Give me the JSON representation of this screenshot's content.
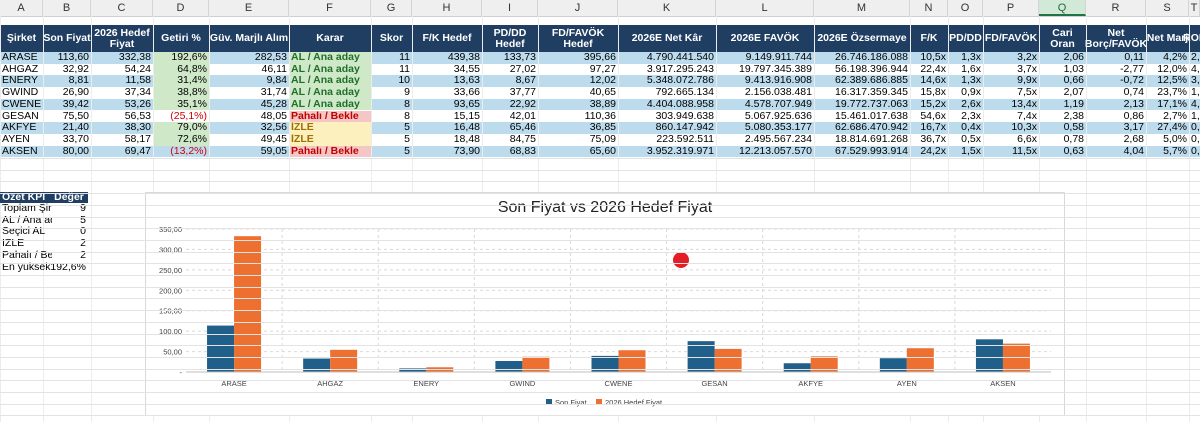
{
  "column_letters": [
    "A",
    "B",
    "C",
    "D",
    "E",
    "F",
    "G",
    "H",
    "I",
    "J",
    "K",
    "L",
    "M",
    "N",
    "O",
    "P",
    "Q",
    "R",
    "S",
    "T"
  ],
  "selected_column": "Q",
  "headers": [
    "Şirket",
    "Son Fiyat",
    "2026 Hedef Fiyat",
    "Getiri %",
    "Güv. Marjlı Alım",
    "Karar",
    "Skor",
    "F/K Hedef",
    "PD/DD Hedef",
    "FD/FAVÖK Hedef",
    "2026E Net Kâr",
    "2026E FAVÖK",
    "2026E Özsermaye",
    "F/K",
    "PD/DD",
    "FD/FAVÖK",
    "Cari Oran",
    "Net Borç/FAVÖK",
    "Net Marj",
    "ROE"
  ],
  "rows": [
    {
      "sirket": "ARASE",
      "son": "113,60",
      "hedef": "332,38",
      "getiri": "192,6%",
      "guv": "282,53",
      "karar": "AL / Ana aday",
      "karar_type": "al",
      "skor": "11",
      "fk_h": "439,38",
      "pddd_h": "133,73",
      "fdf_h": "395,66",
      "netkar": "4.790.441.540",
      "favok": "9.149.911.744",
      "ozs": "26.746.186.088",
      "fk": "10,5x",
      "pddd": "1,3x",
      "fdf": "3,2x",
      "cari": "2,06",
      "nb": "0,11",
      "nm": "4,2%",
      "roe": "2,0%"
    },
    {
      "sirket": "AHGAZ",
      "son": "32,92",
      "hedef": "54,24",
      "getiri": "64,8%",
      "guv": "46,11",
      "karar": "AL / Ana aday",
      "karar_type": "al",
      "skor": "11",
      "fk_h": "34,55",
      "pddd_h": "27,02",
      "fdf_h": "97,27",
      "netkar": "3.917.295.243",
      "favok": "19.797.345.389",
      "ozs": "56.198.396.944",
      "fk": "22,4x",
      "pddd": "1,6x",
      "fdf": "3,7x",
      "cari": "1,03",
      "nb": "-2,77",
      "nm": "12,0%",
      "roe": "4,4%"
    },
    {
      "sirket": "ENERY",
      "son": "8,81",
      "hedef": "11,58",
      "getiri": "31,4%",
      "guv": "9,84",
      "karar": "AL / Ana aday",
      "karar_type": "al",
      "skor": "10",
      "fk_h": "13,63",
      "pddd_h": "8,67",
      "fdf_h": "12,02",
      "netkar": "5.348.072.786",
      "favok": "9.413.916.908",
      "ozs": "62.389.686.885",
      "fk": "14,6x",
      "pddd": "1,3x",
      "fdf": "9,9x",
      "cari": "0,66",
      "nb": "-0,72",
      "nm": "12,5%",
      "roe": "3,7%"
    },
    {
      "sirket": "GWIND",
      "son": "26,90",
      "hedef": "37,34",
      "getiri": "38,8%",
      "guv": "31,74",
      "karar": "AL / Ana aday",
      "karar_type": "al",
      "skor": "9",
      "fk_h": "33,66",
      "pddd_h": "37,77",
      "fdf_h": "40,65",
      "netkar": "792.665.134",
      "favok": "2.156.038.481",
      "ozs": "16.317.359.345",
      "fk": "15,8x",
      "pddd": "0,9x",
      "fdf": "7,5x",
      "cari": "2,07",
      "nb": "0,74",
      "nm": "23,7%",
      "roe": "1,0%"
    },
    {
      "sirket": "CWENE",
      "son": "39,42",
      "hedef": "53,26",
      "getiri": "35,1%",
      "guv": "45,28",
      "karar": "AL / Ana aday",
      "karar_type": "al",
      "skor": "8",
      "fk_h": "93,65",
      "pddd_h": "22,92",
      "fdf_h": "38,89",
      "netkar": "4.404.088.958",
      "favok": "4.578.707.949",
      "ozs": "19.772.737.063",
      "fk": "15,2x",
      "pddd": "2,6x",
      "fdf": "13,4x",
      "cari": "1,19",
      "nb": "2,13",
      "nm": "17,1%",
      "roe": "4,6%"
    },
    {
      "sirket": "GESAN",
      "son": "75,50",
      "hedef": "56,53",
      "getiri": "(25,1%)",
      "guv": "48,05",
      "karar": "Pahalı / Bekle",
      "karar_type": "bekle",
      "skor": "8",
      "fk_h": "15,15",
      "pddd_h": "42,01",
      "fdf_h": "110,36",
      "netkar": "303.949.638",
      "favok": "5.067.925.636",
      "ozs": "15.461.017.638",
      "fk": "54,6x",
      "pddd": "2,3x",
      "fdf": "7,4x",
      "cari": "2,38",
      "nb": "0,86",
      "nm": "2,7%",
      "roe": "1,2%"
    },
    {
      "sirket": "AKFYE",
      "son": "21,40",
      "hedef": "38,30",
      "getiri": "79,0%",
      "guv": "32,56",
      "karar": "İZLE",
      "karar_type": "izle",
      "skor": "5",
      "fk_h": "16,48",
      "pddd_h": "65,46",
      "fdf_h": "36,85",
      "netkar": "860.147.942",
      "favok": "5.080.353.177",
      "ozs": "62.686.470.942",
      "fk": "16,7x",
      "pddd": "0,4x",
      "fdf": "10,3x",
      "cari": "0,58",
      "nb": "3,17",
      "nm": "27,4%",
      "roe": "0,8%"
    },
    {
      "sirket": "AYEN",
      "son": "33,70",
      "hedef": "58,17",
      "getiri": "72,6%",
      "guv": "49,45",
      "karar": "İZLE",
      "karar_type": "izle",
      "skor": "5",
      "fk_h": "18,48",
      "pddd_h": "84,75",
      "fdf_h": "75,09",
      "netkar": "223.592.511",
      "favok": "2.495.567.234",
      "ozs": "18.814.691.268",
      "fk": "36,7x",
      "pddd": "0,5x",
      "fdf": "6,6x",
      "cari": "0,78",
      "nb": "2,68",
      "nm": "5,0%",
      "roe": "0,5%"
    },
    {
      "sirket": "AKSEN",
      "son": "80,00",
      "hedef": "69,47",
      "getiri": "(13,2%)",
      "guv": "59,05",
      "karar": "Pahalı / Bekle",
      "karar_type": "bekle",
      "skor": "5",
      "fk_h": "73,90",
      "pddd_h": "68,83",
      "fdf_h": "65,60",
      "netkar": "3.952.319.971",
      "favok": "12.213.057.570",
      "ozs": "67.529.993.914",
      "fk": "24,2x",
      "pddd": "1,5x",
      "fdf": "11,5x",
      "cari": "0,63",
      "nb": "4,04",
      "nm": "5,7%",
      "roe": "0,9%"
    }
  ],
  "kpi": {
    "header": [
      "Özet KPI",
      "Değer"
    ],
    "items": [
      {
        "label": "Toplam Şirket",
        "value": "9"
      },
      {
        "label": "AL / Ana aday",
        "value": "5"
      },
      {
        "label": "Seçici AL",
        "value": "0"
      },
      {
        "label": "İZLE",
        "value": "2"
      },
      {
        "label": "Pahalı / Bekle",
        "value": "2"
      },
      {
        "label": "En yüksek",
        "value": "192,6%"
      }
    ]
  },
  "colors": {
    "header_bg": "#1f3e62",
    "band": "#bcdcee",
    "series1": "#1f5f89",
    "series2": "#ed7031",
    "marker": "#e41e26"
  },
  "chart_data": {
    "type": "bar",
    "title": "Son Fiyat vs 2026 Hedef Fiyat",
    "categories": [
      "ARASE",
      "AHGAZ",
      "ENERY",
      "GWIND",
      "CWENE",
      "GESAN",
      "AKFYE",
      "AYEN",
      "AKSEN"
    ],
    "series": [
      {
        "name": "Son Fiyat",
        "values": [
          113.6,
          32.92,
          8.81,
          26.9,
          39.42,
          75.5,
          21.4,
          33.7,
          80.0
        ]
      },
      {
        "name": "2026 Hedef Fiyat",
        "values": [
          332.38,
          54.24,
          11.58,
          37.34,
          53.26,
          56.53,
          38.3,
          58.17,
          69.47
        ]
      }
    ],
    "yticks": [
      "350,00",
      "300,00",
      "250,00",
      "200,00",
      "150,00",
      "100,00",
      "50,00",
      "-"
    ],
    "ylim": [
      0,
      350
    ],
    "grid": true,
    "legend": "bottom"
  }
}
